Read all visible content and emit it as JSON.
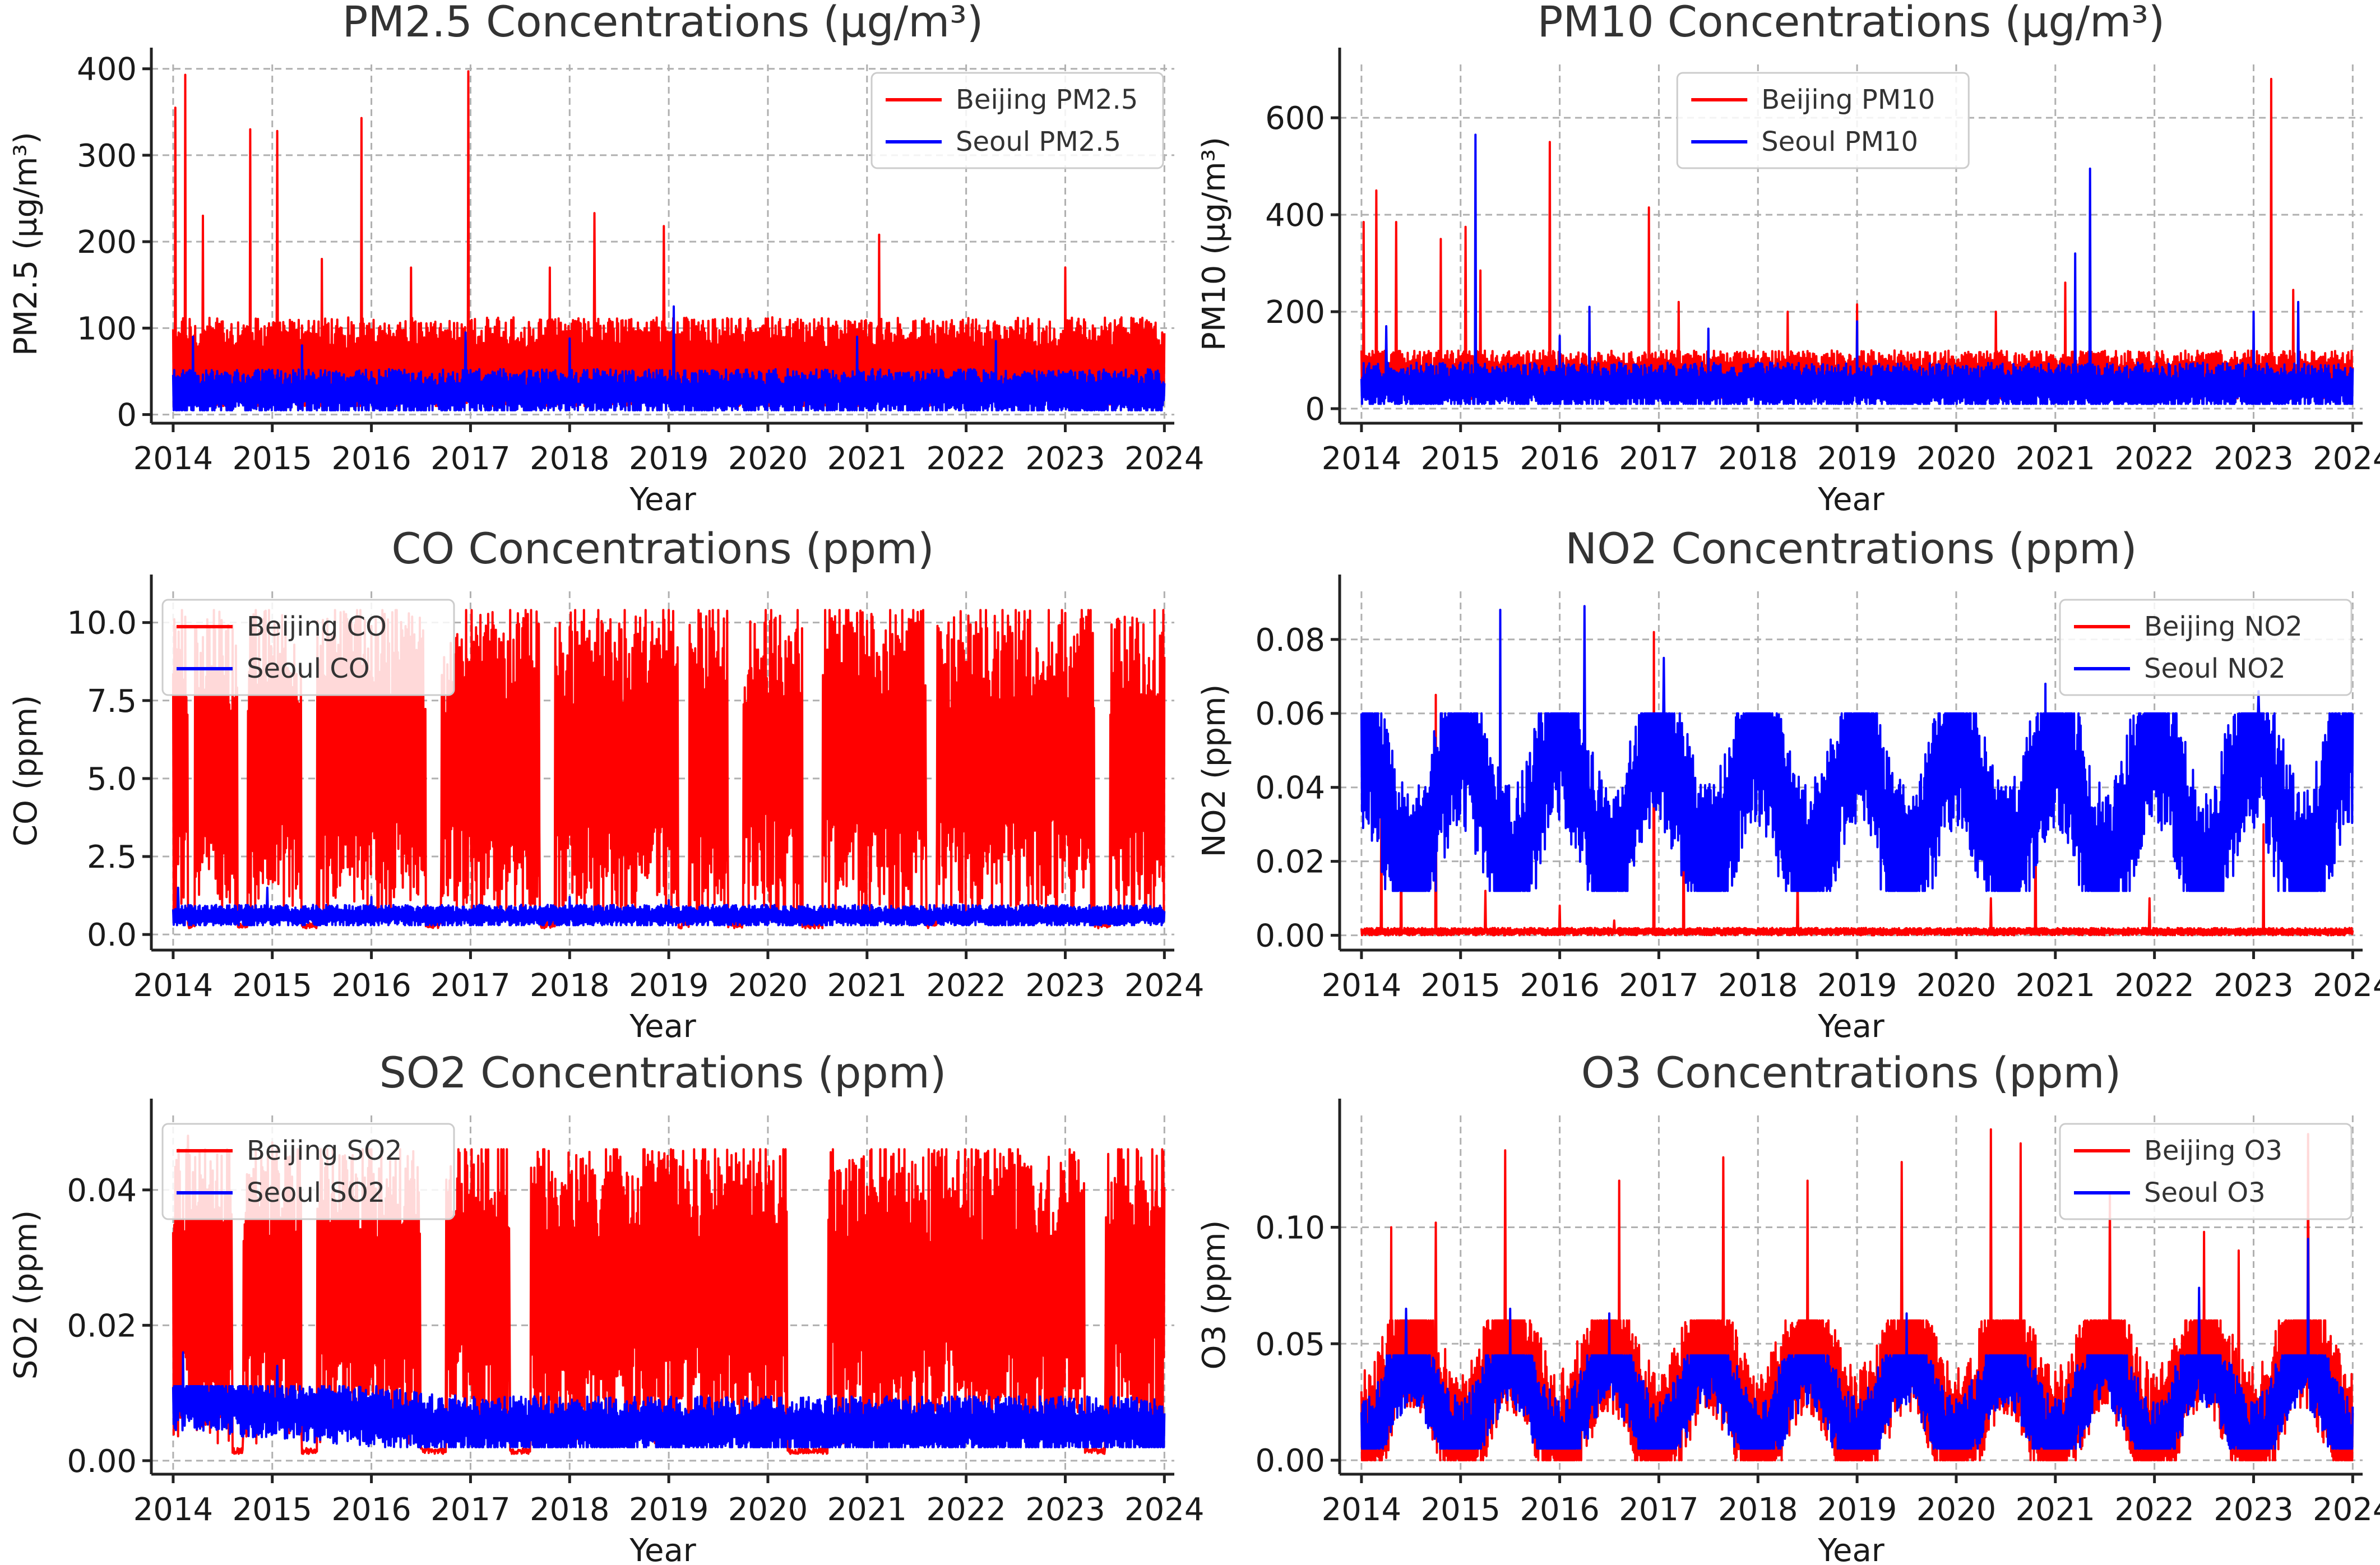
{
  "figure": {
    "note": "2x3 grid of time series: Beijing vs Seoul daily pollutant concentrations 2014-2024"
  },
  "colors": {
    "beijing": "#ff0000",
    "seoul": "#0000ff"
  },
  "chart_data": [
    {
      "type": "line",
      "title": "PM2.5 Concentrations (µg/m³)",
      "xlabel": "Year",
      "ylabel": "PM2.5 (µg/m³)",
      "xlim": [
        2013.78,
        2024.1
      ],
      "ylim": [
        -10,
        405
      ],
      "xticks": [
        2014,
        2015,
        2016,
        2017,
        2018,
        2019,
        2020,
        2021,
        2022,
        2023,
        2024
      ],
      "yticks": [
        0,
        100,
        200,
        300,
        400
      ],
      "ytick_labels": [
        "0",
        "100",
        "200",
        "300",
        "400"
      ],
      "legend_position": "top-right",
      "grid": true,
      "series": [
        {
          "name": "Beijing PM2.5",
          "color": "#ff0000",
          "band": [
            10,
            115
          ],
          "base": 60,
          "spikes": [
            [
              2014.02,
              355
            ],
            [
              2014.12,
              393
            ],
            [
              2014.3,
              230
            ],
            [
              2014.78,
              330
            ],
            [
              2015.05,
              328
            ],
            [
              2015.5,
              180
            ],
            [
              2015.9,
              343
            ],
            [
              2016.4,
              170
            ],
            [
              2016.98,
              397
            ],
            [
              2017.8,
              170
            ],
            [
              2018.25,
              233
            ],
            [
              2018.95,
              218
            ],
            [
              2021.12,
              208
            ],
            [
              2022.1,
              110
            ],
            [
              2023.0,
              170
            ]
          ]
        },
        {
          "name": "Seoul PM2.5",
          "color": "#0000ff",
          "band": [
            5,
            60
          ],
          "base": 25,
          "spikes": [
            [
              2014.2,
              90
            ],
            [
              2015.3,
              80
            ],
            [
              2016.95,
              95
            ],
            [
              2018.0,
              88
            ],
            [
              2019.05,
              125
            ],
            [
              2020.9,
              90
            ],
            [
              2022.3,
              85
            ]
          ]
        }
      ]
    },
    {
      "type": "line",
      "title": "PM10 Concentrations (µg/m³)",
      "xlabel": "Year",
      "ylabel": "PM10 (µg/m³)",
      "xlim": [
        2013.78,
        2024.1
      ],
      "ylim": [
        -30,
        710
      ],
      "xticks": [
        2014,
        2015,
        2016,
        2017,
        2018,
        2019,
        2020,
        2021,
        2022,
        2023,
        2024
      ],
      "yticks": [
        0,
        200,
        400,
        600
      ],
      "ytick_labels": [
        "0",
        "200",
        "400",
        "600"
      ],
      "legend_position": "top-center",
      "grid": true,
      "series": [
        {
          "name": "Beijing PM10",
          "color": "#ff0000",
          "band": [
            20,
            120
          ],
          "base": 70,
          "spikes": [
            [
              2014.02,
              385
            ],
            [
              2014.15,
              450
            ],
            [
              2014.35,
              385
            ],
            [
              2014.8,
              350
            ],
            [
              2015.05,
              375
            ],
            [
              2015.2,
              285
            ],
            [
              2015.9,
              550
            ],
            [
              2016.9,
              415
            ],
            [
              2017.2,
              220
            ],
            [
              2018.3,
              200
            ],
            [
              2019.0,
              215
            ],
            [
              2020.4,
              200
            ],
            [
              2021.1,
              260
            ],
            [
              2023.18,
              680
            ],
            [
              2023.4,
              245
            ]
          ]
        },
        {
          "name": "Seoul PM10",
          "color": "#0000ff",
          "band": [
            10,
            110
          ],
          "base": 45,
          "spikes": [
            [
              2014.25,
              170
            ],
            [
              2015.15,
              565
            ],
            [
              2016.0,
              150
            ],
            [
              2016.3,
              210
            ],
            [
              2017.5,
              165
            ],
            [
              2019.0,
              180
            ],
            [
              2021.2,
              320
            ],
            [
              2021.35,
              495
            ],
            [
              2023.0,
              200
            ],
            [
              2023.45,
              220
            ]
          ]
        }
      ]
    },
    {
      "type": "line",
      "title": "CO Concentrations (ppm)",
      "xlabel": "Year",
      "ylabel": "CO (ppm)",
      "xlim": [
        2013.78,
        2024.1
      ],
      "ylim": [
        -0.5,
        11.0
      ],
      "xticks": [
        2014,
        2015,
        2016,
        2017,
        2018,
        2019,
        2020,
        2021,
        2022,
        2023,
        2024
      ],
      "yticks": [
        0.0,
        2.5,
        5.0,
        7.5,
        10.0
      ],
      "ytick_labels": [
        "0.0",
        "2.5",
        "5.0",
        "7.5",
        "10.0"
      ],
      "legend_position": "top-left",
      "grid": true,
      "series": [
        {
          "name": "Beijing CO",
          "color": "#ff0000",
          "band": [
            0.2,
            10.4
          ],
          "base": 5.5,
          "gaps": [
            [
              2014.15,
              2014.22
            ],
            [
              2014.65,
              2014.75
            ],
            [
              2015.3,
              2015.45
            ],
            [
              2016.55,
              2016.7
            ],
            [
              2017.7,
              2017.85
            ],
            [
              2019.1,
              2019.2
            ],
            [
              2019.6,
              2019.75
            ],
            [
              2020.35,
              2020.55
            ],
            [
              2021.6,
              2021.7
            ],
            [
              2023.3,
              2023.45
            ]
          ],
          "spikes": []
        },
        {
          "name": "Seoul CO",
          "color": "#0000ff",
          "band": [
            0.3,
            1.0
          ],
          "base": 0.6,
          "spikes": [
            [
              2014.05,
              1.5
            ],
            [
              2014.95,
              1.5
            ],
            [
              2016.0,
              1.2
            ],
            [
              2018.0,
              1.2
            ],
            [
              2019.0,
              1.1
            ]
          ]
        }
      ]
    },
    {
      "type": "line",
      "title": "NO2 Concentrations (ppm)",
      "xlabel": "Year",
      "ylabel": "NO2 (ppm)",
      "xlim": [
        2013.78,
        2024.1
      ],
      "ylim": [
        -0.004,
        0.093
      ],
      "xticks": [
        2014,
        2015,
        2016,
        2017,
        2018,
        2019,
        2020,
        2021,
        2022,
        2023,
        2024
      ],
      "yticks": [
        0.0,
        0.02,
        0.04,
        0.06,
        0.08
      ],
      "ytick_labels": [
        "0.00",
        "0.02",
        "0.04",
        "0.06",
        "0.08"
      ],
      "legend_position": "top-right",
      "grid": true,
      "series": [
        {
          "name": "Beijing NO2",
          "color": "#ff0000",
          "band": [
            0.0,
            0.002
          ],
          "base": 0.001,
          "spikes": [
            [
              2014.2,
              0.035
            ],
            [
              2014.4,
              0.03
            ],
            [
              2014.75,
              0.065
            ],
            [
              2015.25,
              0.012
            ],
            [
              2016.0,
              0.008
            ],
            [
              2016.55,
              0.004
            ],
            [
              2016.95,
              0.082
            ],
            [
              2017.25,
              0.04
            ],
            [
              2018.4,
              0.018
            ],
            [
              2020.35,
              0.01
            ],
            [
              2020.8,
              0.038
            ],
            [
              2021.95,
              0.01
            ],
            [
              2023.1,
              0.03
            ]
          ]
        },
        {
          "name": "Seoul NO2",
          "color": "#0000ff",
          "band": [
            0.012,
            0.06
          ],
          "base": 0.035,
          "seasonal": 0.018,
          "spikes": [
            [
              2015.4,
              0.088
            ],
            [
              2016.25,
              0.089
            ],
            [
              2017.05,
              0.075
            ],
            [
              2020.9,
              0.068
            ],
            [
              2023.05,
              0.066
            ]
          ]
        }
      ]
    },
    {
      "type": "line",
      "title": "SO2 Concentrations (ppm)",
      "xlabel": "Year",
      "ylabel": "SO2 (ppm)",
      "xlim": [
        2013.78,
        2024.1
      ],
      "ylim": [
        -0.002,
        0.051
      ],
      "xticks": [
        2014,
        2015,
        2016,
        2017,
        2018,
        2019,
        2020,
        2021,
        2022,
        2023,
        2024
      ],
      "yticks": [
        0.0,
        0.02,
        0.04
      ],
      "ytick_labels": [
        "0.00",
        "0.02",
        "0.04"
      ],
      "legend_position": "top-left",
      "grid": true,
      "series": [
        {
          "name": "Beijing SO2",
          "color": "#ff0000",
          "band": [
            0.001,
            0.046
          ],
          "base": 0.025,
          "gaps": [
            [
              2014.6,
              2014.7
            ],
            [
              2015.3,
              2015.45
            ],
            [
              2016.5,
              2016.75
            ],
            [
              2017.4,
              2017.6
            ],
            [
              2020.2,
              2020.6
            ],
            [
              2023.2,
              2023.4
            ]
          ],
          "spikes": [
            [
              2014.15,
              0.048
            ],
            [
              2015.0,
              0.047
            ]
          ]
        },
        {
          "name": "Seoul SO2",
          "color": "#0000ff",
          "band": [
            0.002,
            0.011
          ],
          "base": 0.005,
          "decay": true,
          "spikes": [
            [
              2014.1,
              0.016
            ],
            [
              2015.05,
              0.014
            ],
            [
              2016.05,
              0.011
            ]
          ]
        }
      ]
    },
    {
      "type": "line",
      "title": "O3 Concentrations (ppm)",
      "xlabel": "Year",
      "ylabel": "O3 (ppm)",
      "xlim": [
        2013.78,
        2024.1
      ],
      "ylim": [
        -0.006,
        0.148
      ],
      "xticks": [
        2014,
        2015,
        2016,
        2017,
        2018,
        2019,
        2020,
        2021,
        2022,
        2023,
        2024
      ],
      "yticks": [
        0.0,
        0.05,
        0.1
      ],
      "ytick_labels": [
        "0.00",
        "0.05",
        "0.10"
      ],
      "legend_position": "top-right",
      "grid": true,
      "series": [
        {
          "name": "Beijing O3",
          "color": "#ff0000",
          "band": [
            0.0,
            0.06
          ],
          "base": 0.03,
          "seasonal": 0.02,
          "spikes": [
            [
              2014.3,
              0.1
            ],
            [
              2014.75,
              0.102
            ],
            [
              2015.45,
              0.133
            ],
            [
              2016.6,
              0.12
            ],
            [
              2017.65,
              0.13
            ],
            [
              2018.5,
              0.12
            ],
            [
              2019.45,
              0.128
            ],
            [
              2020.35,
              0.142
            ],
            [
              2020.65,
              0.136
            ],
            [
              2021.55,
              0.115
            ],
            [
              2022.5,
              0.098
            ],
            [
              2022.85,
              0.09
            ],
            [
              2023.55,
              0.14
            ]
          ]
        },
        {
          "name": "Seoul O3",
          "color": "#0000ff",
          "band": [
            0.005,
            0.045
          ],
          "base": 0.025,
          "seasonal": 0.018,
          "spikes": [
            [
              2014.45,
              0.065
            ],
            [
              2015.5,
              0.065
            ],
            [
              2016.5,
              0.063
            ],
            [
              2019.5,
              0.063
            ],
            [
              2022.45,
              0.074
            ],
            [
              2023.55,
              0.095
            ]
          ]
        }
      ]
    }
  ]
}
